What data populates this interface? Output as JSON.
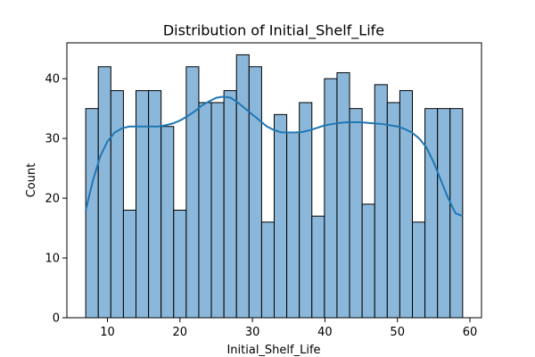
{
  "chart_data": {
    "type": "histogram",
    "title": "Distribution of Initial_Shelf_Life",
    "xlabel": "Initial_Shelf_Life",
    "ylabel": "Count",
    "xlim": [
      4.4,
      61.6
    ],
    "ylim": [
      0,
      46
    ],
    "xticks": [
      10,
      20,
      30,
      40,
      50,
      60
    ],
    "yticks": [
      0,
      10,
      20,
      30,
      40
    ],
    "bin_start": 7,
    "bin_width": 1.7333,
    "bins": [
      {
        "x0": 7.0,
        "x1": 8.7333,
        "count": 35
      },
      {
        "x0": 8.7333,
        "x1": 10.4667,
        "count": 42
      },
      {
        "x0": 10.4667,
        "x1": 12.2,
        "count": 38
      },
      {
        "x0": 12.2,
        "x1": 13.9333,
        "count": 18
      },
      {
        "x0": 13.9333,
        "x1": 15.6667,
        "count": 38
      },
      {
        "x0": 15.6667,
        "x1": 17.4,
        "count": 38
      },
      {
        "x0": 17.4,
        "x1": 19.1333,
        "count": 32
      },
      {
        "x0": 19.1333,
        "x1": 20.8667,
        "count": 18
      },
      {
        "x0": 20.8667,
        "x1": 22.6,
        "count": 42
      },
      {
        "x0": 22.6,
        "x1": 24.3333,
        "count": 36
      },
      {
        "x0": 24.3333,
        "x1": 26.0667,
        "count": 36
      },
      {
        "x0": 26.0667,
        "x1": 27.8,
        "count": 38
      },
      {
        "x0": 27.8,
        "x1": 29.5333,
        "count": 44
      },
      {
        "x0": 29.5333,
        "x1": 31.2667,
        "count": 42
      },
      {
        "x0": 31.2667,
        "x1": 33.0,
        "count": 16
      },
      {
        "x0": 33.0,
        "x1": 34.7333,
        "count": 34
      },
      {
        "x0": 34.7333,
        "x1": 36.4667,
        "count": 31
      },
      {
        "x0": 36.4667,
        "x1": 38.2,
        "count": 36
      },
      {
        "x0": 38.2,
        "x1": 39.9333,
        "count": 17
      },
      {
        "x0": 39.9333,
        "x1": 41.6667,
        "count": 40
      },
      {
        "x0": 41.6667,
        "x1": 43.4,
        "count": 41
      },
      {
        "x0": 43.4,
        "x1": 45.1333,
        "count": 35
      },
      {
        "x0": 45.1333,
        "x1": 46.8667,
        "count": 19
      },
      {
        "x0": 46.8667,
        "x1": 48.6,
        "count": 39
      },
      {
        "x0": 48.6,
        "x1": 50.3333,
        "count": 36
      },
      {
        "x0": 50.3333,
        "x1": 52.0667,
        "count": 38
      },
      {
        "x0": 52.0667,
        "x1": 53.8,
        "count": 16
      },
      {
        "x0": 53.8,
        "x1": 55.5333,
        "count": 35
      },
      {
        "x0": 55.5333,
        "x1": 57.2667,
        "count": 35
      },
      {
        "x0": 57.2667,
        "x1": 59.0,
        "count": 35
      }
    ],
    "kde": {
      "x": [
        7,
        8,
        9,
        10,
        11,
        12,
        13,
        14,
        15,
        16,
        17,
        18,
        19,
        20,
        21,
        22,
        23,
        24,
        25,
        26,
        27,
        28,
        29,
        30,
        31,
        32,
        33,
        34,
        35,
        36,
        37,
        38,
        39,
        40,
        41,
        42,
        43,
        44,
        45,
        46,
        47,
        48,
        49,
        50,
        51,
        52,
        53,
        54,
        55,
        56,
        57,
        58,
        59
      ],
      "y": [
        18.0,
        23.0,
        27.0,
        29.5,
        31.0,
        31.7,
        32.0,
        32.0,
        32.0,
        32.0,
        32.0,
        32.2,
        32.5,
        33.0,
        33.7,
        34.5,
        35.5,
        36.2,
        36.8,
        37.0,
        36.8,
        36.0,
        35.0,
        34.0,
        33.0,
        32.0,
        31.4,
        31.0,
        31.0,
        31.0,
        31.1,
        31.4,
        31.8,
        32.2,
        32.4,
        32.6,
        32.7,
        32.7,
        32.7,
        32.6,
        32.5,
        32.4,
        32.2,
        32.0,
        31.6,
        31.0,
        30.0,
        28.5,
        26.0,
        23.0,
        20.0,
        17.5,
        17.0
      ]
    },
    "grid": false,
    "colors": {
      "bar_fill": "#8bb8da",
      "bar_edge": "#000000",
      "kde_line": "#1f77b4"
    }
  }
}
